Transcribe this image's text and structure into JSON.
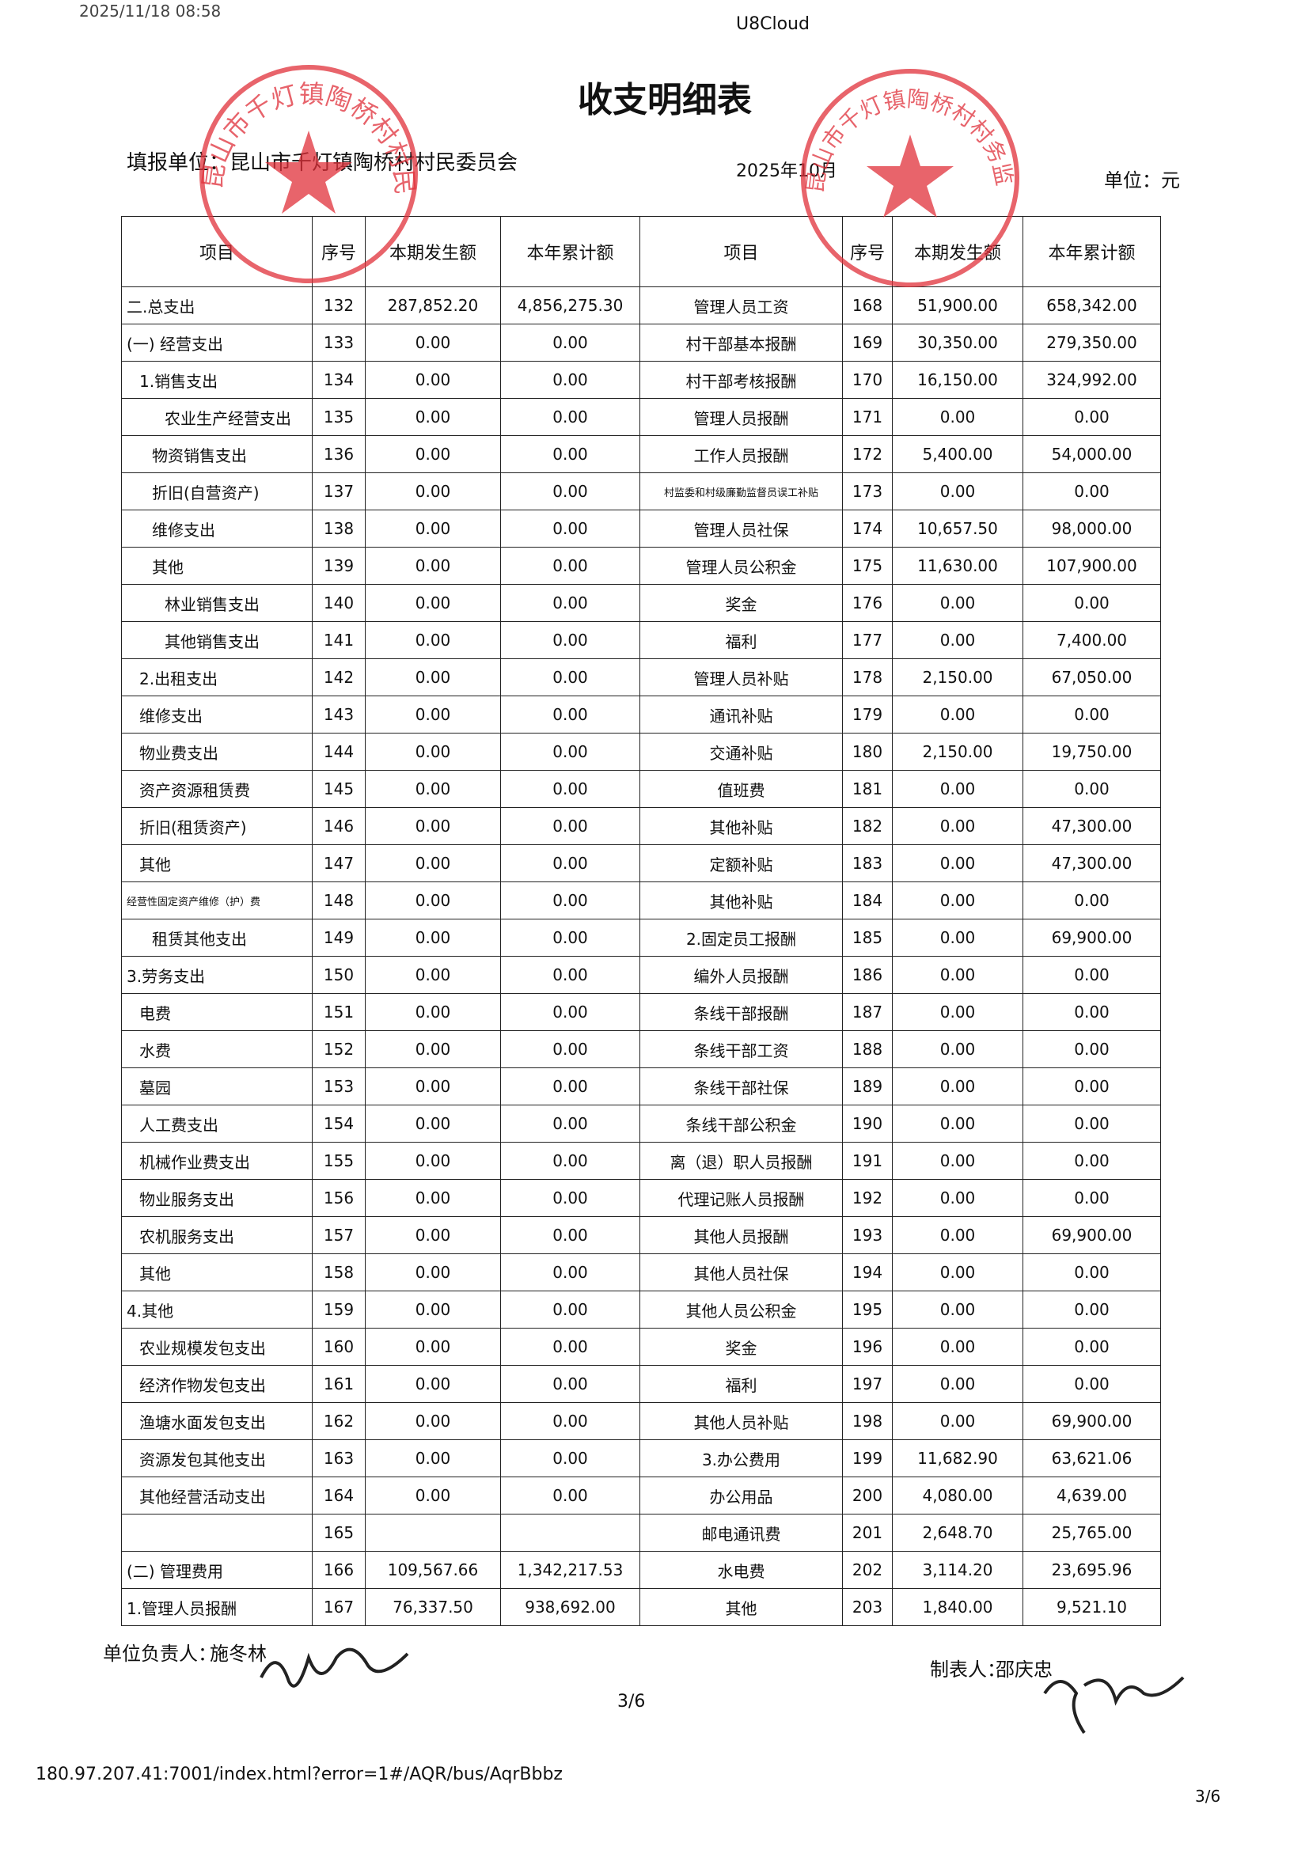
{
  "browser_header": {
    "timestamp": "2025/11/18 08:58",
    "site": "U8Cloud"
  },
  "title": "收支明细表",
  "meta": {
    "unit_org": "填报单位：昆山市千灯镇陶桥村村民委员会",
    "period": "2025年10月",
    "currency": "单位：元"
  },
  "stamps": {
    "left": "昆山市千灯镇陶桥村村民委员会",
    "right": "昆山市千灯镇陶桥村村务监督委员会"
  },
  "table": {
    "header": [
      "项目",
      "序号",
      "本期发生额",
      "本年累计额",
      "项目",
      "序号",
      "本期发生额",
      "本年累计额"
    ],
    "left_rows": [
      [
        "二.总支出",
        "132",
        "287,852.20",
        "4,856,275.30"
      ],
      [
        "(一) 经营支出",
        "133",
        "0.00",
        "0.00"
      ],
      [
        "1.销售支出",
        "134",
        "0.00",
        "0.00"
      ],
      [
        "农业生产经营支出",
        "135",
        "0.00",
        "0.00"
      ],
      [
        "物资销售支出",
        "136",
        "0.00",
        "0.00"
      ],
      [
        "折旧(自营资产)",
        "137",
        "0.00",
        "0.00"
      ],
      [
        "维修支出",
        "138",
        "0.00",
        "0.00"
      ],
      [
        "其他",
        "139",
        "0.00",
        "0.00"
      ],
      [
        "林业销售支出",
        "140",
        "0.00",
        "0.00"
      ],
      [
        "其他销售支出",
        "141",
        "0.00",
        "0.00"
      ],
      [
        "2.出租支出",
        "142",
        "0.00",
        "0.00"
      ],
      [
        "维修支出",
        "143",
        "0.00",
        "0.00"
      ],
      [
        "物业费支出",
        "144",
        "0.00",
        "0.00"
      ],
      [
        "资产资源租赁费",
        "145",
        "0.00",
        "0.00"
      ],
      [
        "折旧(租赁资产)",
        "146",
        "0.00",
        "0.00"
      ],
      [
        "其他",
        "147",
        "0.00",
        "0.00"
      ],
      [
        "经营性固定资产维修（护）费",
        "148",
        "0.00",
        "0.00"
      ],
      [
        "租赁其他支出",
        "149",
        "0.00",
        "0.00"
      ],
      [
        "3.劳务支出",
        "150",
        "0.00",
        "0.00"
      ],
      [
        "电费",
        "151",
        "0.00",
        "0.00"
      ],
      [
        "水费",
        "152",
        "0.00",
        "0.00"
      ],
      [
        "墓园",
        "153",
        "0.00",
        "0.00"
      ],
      [
        "人工费支出",
        "154",
        "0.00",
        "0.00"
      ],
      [
        "机械作业费支出",
        "155",
        "0.00",
        "0.00"
      ],
      [
        "物业服务支出",
        "156",
        "0.00",
        "0.00"
      ],
      [
        "农机服务支出",
        "157",
        "0.00",
        "0.00"
      ],
      [
        "其他",
        "158",
        "0.00",
        "0.00"
      ],
      [
        "4.其他",
        "159",
        "0.00",
        "0.00"
      ],
      [
        "农业规模发包支出",
        "160",
        "0.00",
        "0.00"
      ],
      [
        "经济作物发包支出",
        "161",
        "0.00",
        "0.00"
      ],
      [
        "渔塘水面发包支出",
        "162",
        "0.00",
        "0.00"
      ],
      [
        "资源发包其他支出",
        "163",
        "0.00",
        "0.00"
      ],
      [
        "其他经营活动支出",
        "164",
        "0.00",
        "0.00"
      ],
      [
        null,
        "165",
        null,
        null
      ],
      [
        "(二) 管理费用",
        "166",
        "109,567.66",
        "1,342,217.53"
      ],
      [
        "1.管理人员报酬",
        "167",
        "76,337.50",
        "938,692.00"
      ]
    ],
    "right_rows": [
      [
        "管理人员工资",
        "168",
        "51,900.00",
        "658,342.00"
      ],
      [
        "村干部基本报酬",
        "169",
        "30,350.00",
        "279,350.00"
      ],
      [
        "村干部考核报酬",
        "170",
        "16,150.00",
        "324,992.00"
      ],
      [
        "管理人员报酬",
        "171",
        "0.00",
        "0.00"
      ],
      [
        "工作人员报酬",
        "172",
        "5,400.00",
        "54,000.00"
      ],
      [
        "村监委和村级廉勤监督员误工补贴",
        "173",
        "0.00",
        "0.00"
      ],
      [
        "管理人员社保",
        "174",
        "10,657.50",
        "98,000.00"
      ],
      [
        "管理人员公积金",
        "175",
        "11,630.00",
        "107,900.00"
      ],
      [
        "奖金",
        "176",
        "0.00",
        "0.00"
      ],
      [
        "福利",
        "177",
        "0.00",
        "7,400.00"
      ],
      [
        "管理人员补贴",
        "178",
        "2,150.00",
        "67,050.00"
      ],
      [
        "通讯补贴",
        "179",
        "0.00",
        "0.00"
      ],
      [
        "交通补贴",
        "180",
        "2,150.00",
        "19,750.00"
      ],
      [
        "值班费",
        "181",
        "0.00",
        "0.00"
      ],
      [
        "其他补贴",
        "182",
        "0.00",
        "47,300.00"
      ],
      [
        "定额补贴",
        "183",
        "0.00",
        "47,300.00"
      ],
      [
        "其他补贴",
        "184",
        "0.00",
        "0.00"
      ],
      [
        "2.固定员工报酬",
        "185",
        "0.00",
        "69,900.00"
      ],
      [
        "编外人员报酬",
        "186",
        "0.00",
        "0.00"
      ],
      [
        "条线干部报酬",
        "187",
        "0.00",
        "0.00"
      ],
      [
        "条线干部工资",
        "188",
        "0.00",
        "0.00"
      ],
      [
        "条线干部社保",
        "189",
        "0.00",
        "0.00"
      ],
      [
        "条线干部公积金",
        "190",
        "0.00",
        "0.00"
      ],
      [
        "离（退）职人员报酬",
        "191",
        "0.00",
        "0.00"
      ],
      [
        "代理记账人员报酬",
        "192",
        "0.00",
        "0.00"
      ],
      [
        "其他人员报酬",
        "193",
        "0.00",
        "69,900.00"
      ],
      [
        "其他人员社保",
        "194",
        "0.00",
        "0.00"
      ],
      [
        "其他人员公积金",
        "195",
        "0.00",
        "0.00"
      ],
      [
        "奖金",
        "196",
        "0.00",
        "0.00"
      ],
      [
        "福利",
        "197",
        "0.00",
        "0.00"
      ],
      [
        "其他人员补贴",
        "198",
        "0.00",
        "69,900.00"
      ],
      [
        "3.办公费用",
        "199",
        "11,682.90",
        "63,621.06"
      ],
      [
        "办公用品",
        "200",
        "4,080.00",
        "4,639.00"
      ],
      [
        "邮电通讯费",
        "201",
        "2,648.70",
        "25,765.00"
      ],
      [
        "水电费",
        "202",
        "3,114.20",
        "23,695.96"
      ],
      [
        "其他",
        "203",
        "1,840.00",
        "9,521.10"
      ]
    ]
  },
  "footer": {
    "leader_label": "单位负责人：",
    "leader_name": "施冬林",
    "preparer_label": "制表人：",
    "preparer_name": "邵庆忠",
    "page": "3/6"
  },
  "browser_footer": {
    "url": "180.97.207.41:7001/index.html?error=1#/AQR/bus/AqrBbbz",
    "page": "3/6"
  }
}
